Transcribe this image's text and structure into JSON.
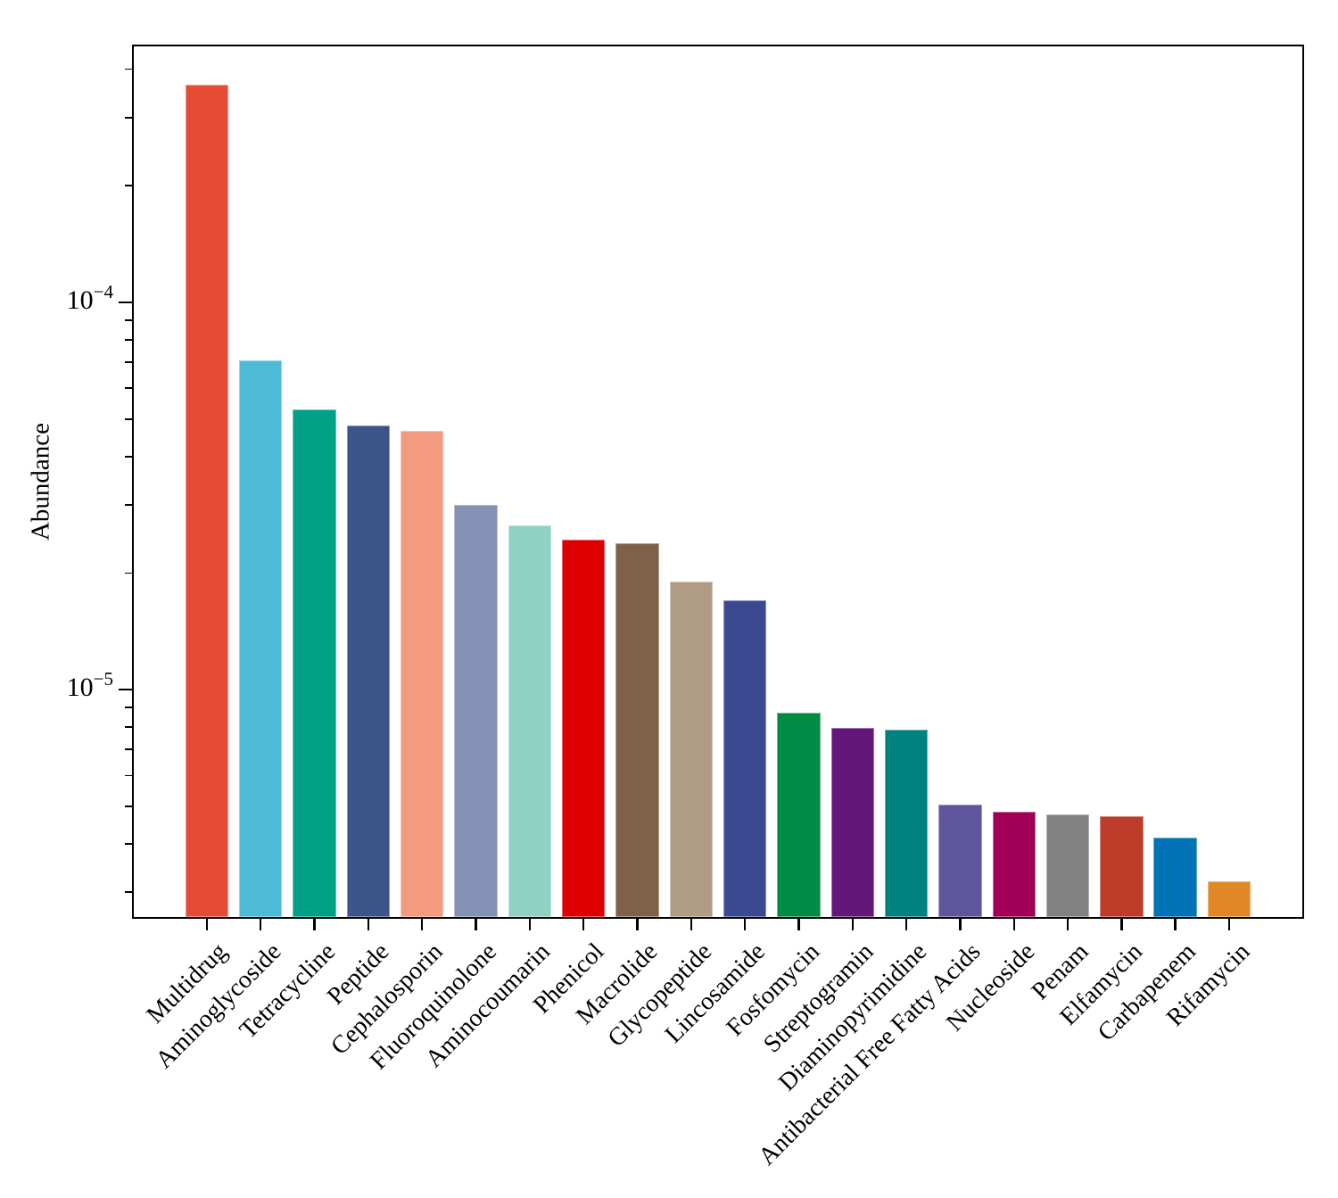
{
  "figure": {
    "background": "#ffffff",
    "axis_color": "#000000"
  },
  "chart_data": {
    "type": "bar",
    "title": "",
    "xlabel": "",
    "ylabel": "Abundance",
    "yscale": "log",
    "grid": false,
    "legend": "none",
    "ylim": [
      2.56e-06,
      0.000463
    ],
    "yticks": [
      {
        "value": 0.0001,
        "base": "10",
        "exponent": "−4"
      },
      {
        "value": 1e-05,
        "base": "10",
        "exponent": "−5"
      }
    ],
    "categories": [
      "Multidrug",
      "Aminoglycoside",
      "Tetracycline",
      "Peptide",
      "Cephalosporin",
      "Fluoroquinolone",
      "Aminocoumarin",
      "Phenicol",
      "Macrolide",
      "Glycopeptide",
      "Lincosamide",
      "Fosfomycin",
      "Streptogramin",
      "Diaminopyrimidine",
      "Antibacterial Free Fatty Acids",
      "Nucleoside",
      "Penam",
      "Elfamycin",
      "Carbapenem",
      "Rifamycin"
    ],
    "values": [
      0.000365,
      7.1e-05,
      5.3e-05,
      4.8e-05,
      4.65e-05,
      3e-05,
      2.65e-05,
      2.44e-05,
      2.39e-05,
      1.9e-05,
      1.7e-05,
      8.7e-06,
      7.95e-06,
      7.9e-06,
      5.05e-06,
      4.85e-06,
      4.75e-06,
      4.7e-06,
      4.15e-06,
      3.2e-06
    ],
    "colors": [
      "#E64B35",
      "#4DBBD5",
      "#00A087",
      "#3C5488",
      "#F39B7F",
      "#8491B4",
      "#91D1C2",
      "#DC0000",
      "#7E6148",
      "#B09C85",
      "#3B4992",
      "#008B45",
      "#631879",
      "#008280",
      "#5F559B",
      "#A20056",
      "#808180",
      "#BC3C29",
      "#0072B5",
      "#E18727"
    ]
  }
}
